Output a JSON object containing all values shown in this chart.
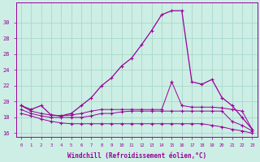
{
  "xlabel": "Windchill (Refroidissement éolien,°C)",
  "background_color": "#cceee4",
  "grid_color": "#aad8cc",
  "line_color": "#990099",
  "hours": [
    0,
    1,
    2,
    3,
    4,
    5,
    6,
    7,
    8,
    9,
    10,
    11,
    12,
    13,
    14,
    15,
    16,
    17,
    18,
    19,
    20,
    21,
    22,
    23
  ],
  "temp": [
    19.5,
    19.0,
    19.5,
    18.3,
    18.2,
    18.5,
    19.5,
    20.5,
    22.0,
    23.0,
    24.5,
    25.5,
    27.2,
    29.0,
    31.0,
    31.5,
    31.5,
    22.5,
    22.2,
    22.8,
    20.5,
    19.5,
    18.0,
    16.5
  ],
  "line2": [
    19.5,
    18.8,
    18.5,
    18.3,
    18.2,
    18.3,
    18.5,
    18.8,
    19.0,
    19.0,
    19.0,
    19.0,
    19.0,
    19.0,
    19.0,
    22.5,
    19.5,
    19.3,
    19.3,
    19.3,
    19.2,
    19.0,
    18.8,
    16.5
  ],
  "line3": [
    19.0,
    18.5,
    18.2,
    18.0,
    18.0,
    18.0,
    18.0,
    18.2,
    18.5,
    18.5,
    18.7,
    18.8,
    18.8,
    18.8,
    18.8,
    18.8,
    18.8,
    18.8,
    18.8,
    18.8,
    18.8,
    17.5,
    17.0,
    16.3
  ],
  "line4": [
    18.5,
    18.2,
    17.8,
    17.5,
    17.3,
    17.2,
    17.2,
    17.2,
    17.2,
    17.2,
    17.2,
    17.2,
    17.2,
    17.2,
    17.2,
    17.2,
    17.2,
    17.2,
    17.2,
    17.0,
    16.8,
    16.5,
    16.3,
    16.0
  ],
  "ylim": [
    15.5,
    32.5
  ],
  "yticks": [
    16,
    18,
    20,
    22,
    24,
    26,
    28,
    30
  ],
  "xlim": [
    -0.5,
    23.5
  ],
  "xticks": [
    0,
    1,
    2,
    3,
    4,
    5,
    6,
    7,
    8,
    9,
    10,
    11,
    12,
    13,
    14,
    15,
    16,
    17,
    18,
    19,
    20,
    21,
    22,
    23
  ]
}
